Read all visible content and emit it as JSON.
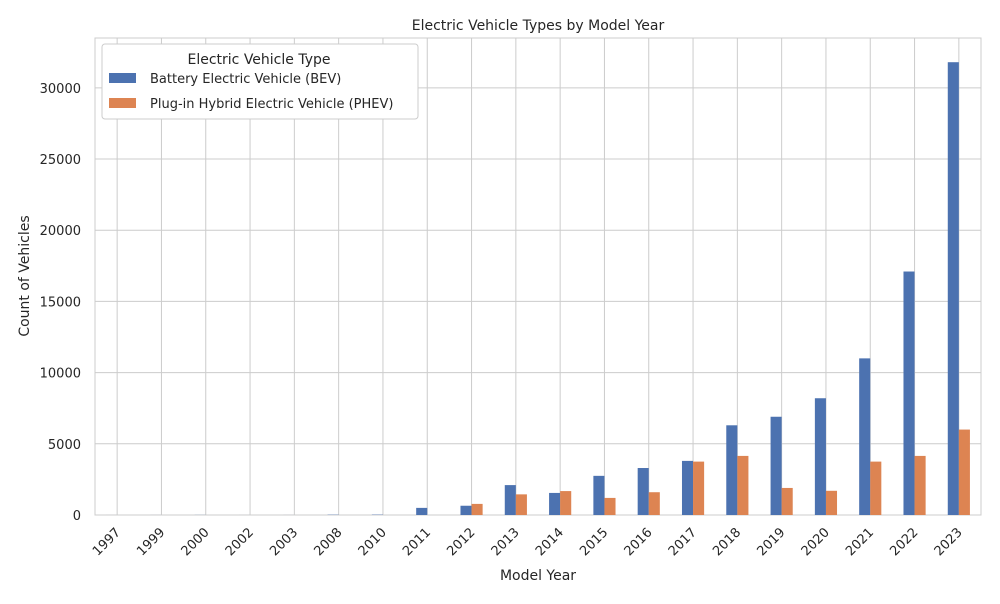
{
  "chart_data": {
    "type": "bar",
    "title": "Electric Vehicle Types by Model Year",
    "xlabel": "Model Year",
    "ylabel": "Count of Vehicles",
    "ylim": [
      0,
      33500
    ],
    "yticks": [
      0,
      5000,
      10000,
      15000,
      20000,
      25000,
      30000
    ],
    "grid": true,
    "legend": {
      "title": "Electric Vehicle Type",
      "placement": "top-left"
    },
    "categories": [
      "1997",
      "1999",
      "2000",
      "2002",
      "2003",
      "2008",
      "2010",
      "2011",
      "2012",
      "2013",
      "2014",
      "2015",
      "2016",
      "2017",
      "2018",
      "2019",
      "2020",
      "2021",
      "2022",
      "2023"
    ],
    "series": [
      {
        "name": "Battery Electric Vehicle (BEV)",
        "color": "#4c72b0",
        "values": [
          1,
          2,
          6,
          1,
          2,
          20,
          24,
          500,
          650,
          2100,
          1550,
          2750,
          3300,
          3800,
          6300,
          6900,
          8200,
          11000,
          17100,
          31800
        ]
      },
      {
        "name": "Plug-in Hybrid Electric Vehicle (PHEV)",
        "color": "#dd8452",
        "values": [
          0,
          0,
          0,
          0,
          0,
          0,
          0,
          0,
          780,
          1450,
          1680,
          1200,
          1600,
          3750,
          4150,
          1900,
          1700,
          3750,
          4150,
          6000
        ]
      }
    ]
  }
}
